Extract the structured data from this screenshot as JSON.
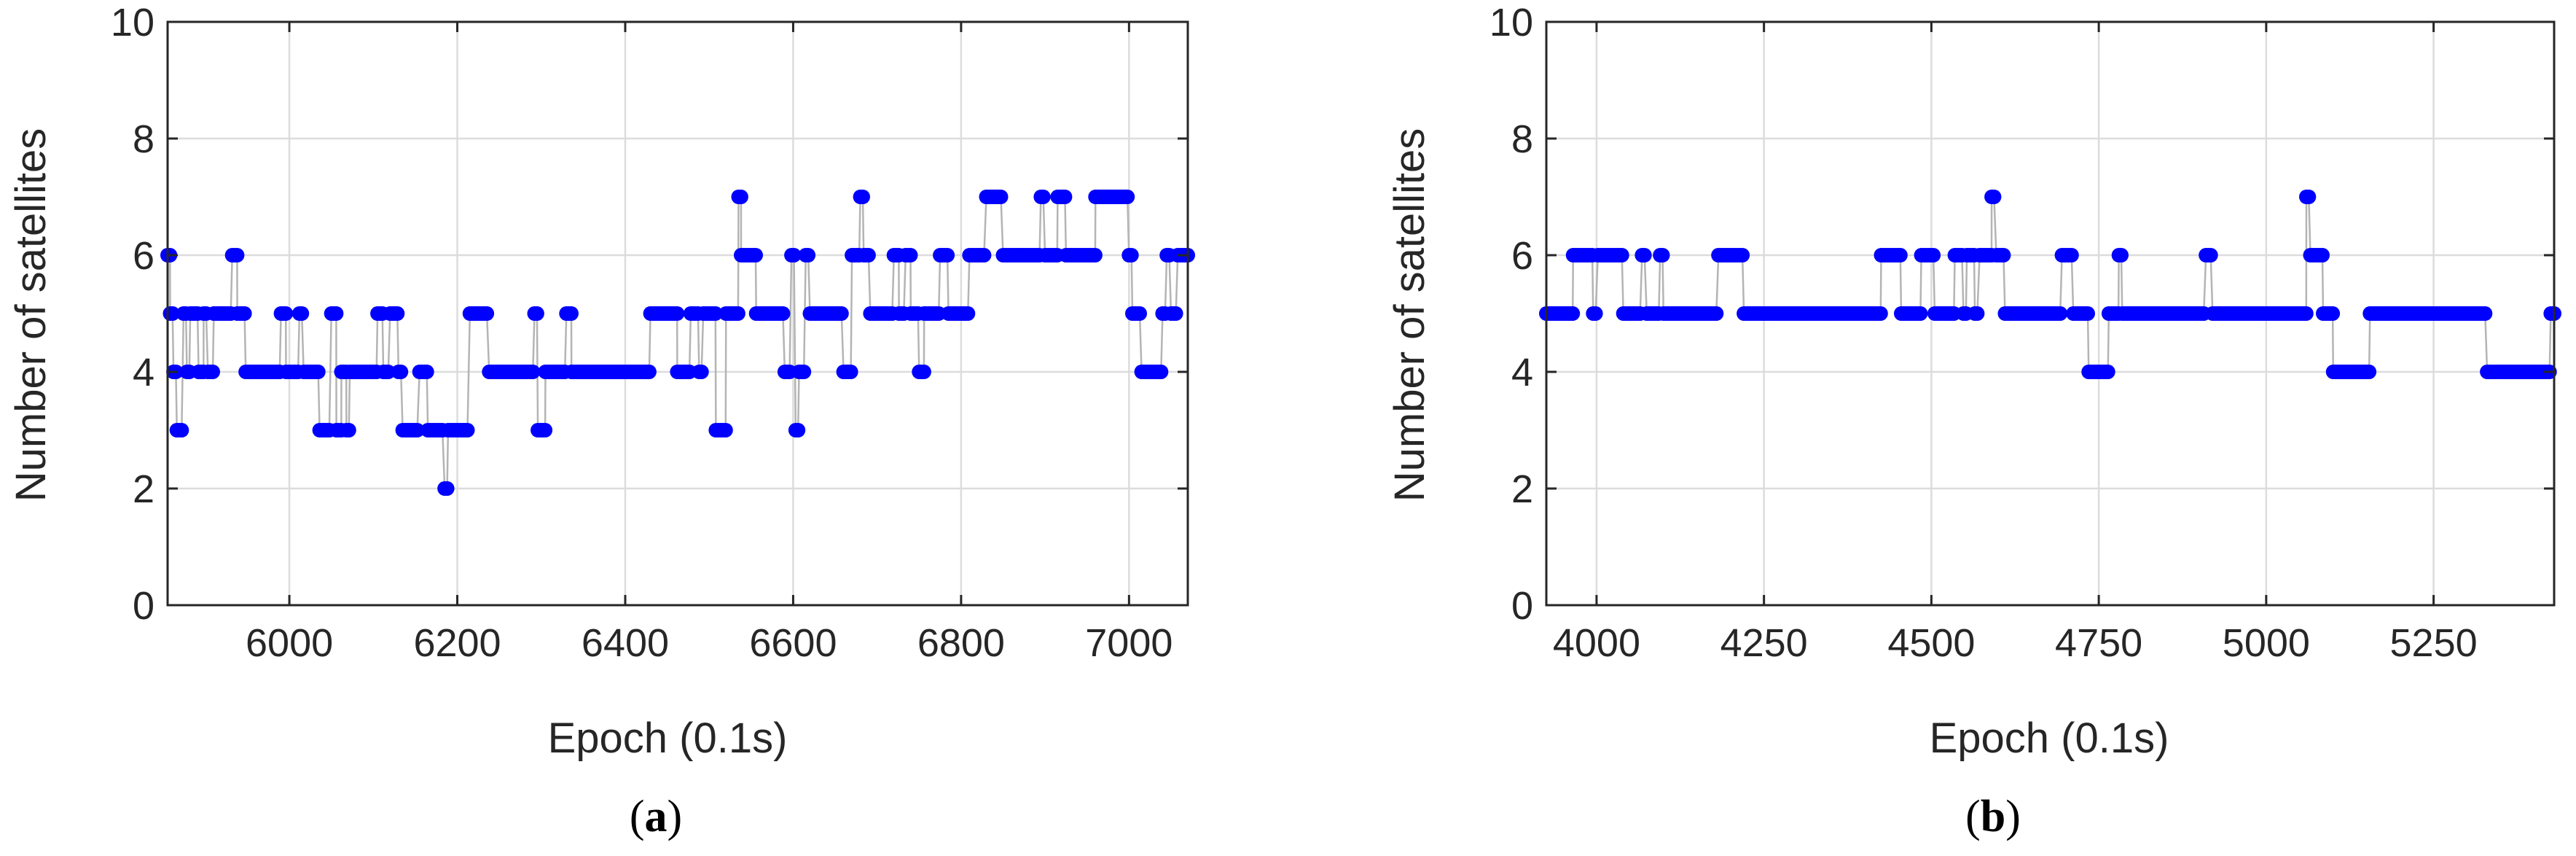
{
  "chart_data": [
    {
      "type": "scatter",
      "panel_label": {
        "open": "(",
        "letter": "a",
        "close": ")"
      },
      "xlabel": "Epoch (0.1s)",
      "ylabel": "Number of satellites",
      "xlim": [
        5855,
        7070
      ],
      "ylim": [
        0,
        10
      ],
      "xticks": [
        "6000",
        "6200",
        "6400",
        "6600",
        "6800",
        "7000"
      ],
      "yticks": [
        "0",
        "2",
        "4",
        "6",
        "8",
        "10"
      ],
      "grid": true,
      "marker_color": "#0000ff",
      "stem_color": "#b4b4b4",
      "steps": [
        [
          5855,
          6
        ],
        [
          5858,
          5
        ],
        [
          5862,
          4
        ],
        [
          5866,
          3
        ],
        [
          5874,
          5
        ],
        [
          5878,
          4
        ],
        [
          5882,
          5
        ],
        [
          5892,
          4
        ],
        [
          5898,
          5
        ],
        [
          5903,
          4
        ],
        [
          5910,
          5
        ],
        [
          5932,
          6
        ],
        [
          5938,
          5
        ],
        [
          5948,
          4
        ],
        [
          5990,
          5
        ],
        [
          5996,
          4
        ],
        [
          6012,
          5
        ],
        [
          6017,
          4
        ],
        [
          6036,
          3
        ],
        [
          6050,
          5
        ],
        [
          6056,
          3
        ],
        [
          6062,
          4
        ],
        [
          6068,
          3
        ],
        [
          6072,
          4
        ],
        [
          6105,
          5
        ],
        [
          6112,
          4
        ],
        [
          6120,
          5
        ],
        [
          6130,
          4
        ],
        [
          6135,
          3
        ],
        [
          6155,
          4
        ],
        [
          6165,
          3
        ],
        [
          6185,
          2
        ],
        [
          6189,
          3
        ],
        [
          6215,
          5
        ],
        [
          6238,
          4
        ],
        [
          6292,
          5
        ],
        [
          6296,
          3
        ],
        [
          6305,
          4
        ],
        [
          6330,
          5
        ],
        [
          6336,
          4
        ],
        [
          6430,
          5
        ],
        [
          6462,
          4
        ],
        [
          6478,
          5
        ],
        [
          6488,
          4
        ],
        [
          6493,
          5
        ],
        [
          6508,
          3
        ],
        [
          6520,
          5
        ],
        [
          6535,
          7
        ],
        [
          6538,
          6
        ],
        [
          6556,
          5
        ],
        [
          6590,
          4
        ],
        [
          6598,
          6
        ],
        [
          6603,
          3
        ],
        [
          6607,
          4
        ],
        [
          6615,
          6
        ],
        [
          6620,
          5
        ],
        [
          6660,
          4
        ],
        [
          6670,
          6
        ],
        [
          6680,
          7
        ],
        [
          6684,
          6
        ],
        [
          6692,
          5
        ],
        [
          6720,
          6
        ],
        [
          6726,
          5
        ],
        [
          6734,
          6
        ],
        [
          6740,
          5
        ],
        [
          6750,
          4
        ],
        [
          6756,
          5
        ],
        [
          6775,
          6
        ],
        [
          6785,
          5
        ],
        [
          6810,
          6
        ],
        [
          6830,
          7
        ],
        [
          6850,
          6
        ],
        [
          6895,
          7
        ],
        [
          6900,
          6
        ],
        [
          6915,
          7
        ],
        [
          6925,
          6
        ],
        [
          6960,
          7
        ],
        [
          6975,
          7
        ],
        [
          7000,
          6
        ],
        [
          7004,
          5
        ],
        [
          7015,
          4
        ],
        [
          7040,
          5
        ],
        [
          7045,
          6
        ],
        [
          7050,
          5
        ],
        [
          7058,
          6
        ],
        [
          7070,
          6
        ]
      ]
    },
    {
      "type": "scatter",
      "panel_label": {
        "open": "(",
        "letter": "b",
        "close": ")"
      },
      "xlabel": "Epoch (0.1s)",
      "ylabel": "Number of satellites",
      "xlim": [
        3925,
        5430
      ],
      "ylim": [
        0,
        10
      ],
      "xticks": [
        "4000",
        "4250",
        "4500",
        "4750",
        "5000",
        "5250"
      ],
      "yticks": [
        "0",
        "2",
        "4",
        "6",
        "8",
        "10"
      ],
      "grid": true,
      "marker_color": "#0000ff",
      "stem_color": "#b4b4b4",
      "steps": [
        [
          3925,
          5
        ],
        [
          3965,
          6
        ],
        [
          3995,
          5
        ],
        [
          4002,
          6
        ],
        [
          4040,
          5
        ],
        [
          4068,
          6
        ],
        [
          4075,
          5
        ],
        [
          4095,
          6
        ],
        [
          4100,
          5
        ],
        [
          4182,
          6
        ],
        [
          4220,
          5
        ],
        [
          4425,
          6
        ],
        [
          4455,
          5
        ],
        [
          4485,
          6
        ],
        [
          4505,
          5
        ],
        [
          4535,
          6
        ],
        [
          4548,
          5
        ],
        [
          4553,
          6
        ],
        [
          4565,
          5
        ],
        [
          4572,
          6
        ],
        [
          4590,
          7
        ],
        [
          4597,
          6
        ],
        [
          4610,
          5
        ],
        [
          4695,
          6
        ],
        [
          4712,
          5
        ],
        [
          4735,
          4
        ],
        [
          4765,
          5
        ],
        [
          4780,
          6
        ],
        [
          4785,
          5
        ],
        [
          4910,
          6
        ],
        [
          4920,
          5
        ],
        [
          5060,
          7
        ],
        [
          5066,
          6
        ],
        [
          5085,
          5
        ],
        [
          5100,
          4
        ],
        [
          5155,
          5
        ],
        [
          5330,
          4
        ],
        [
          5425,
          5
        ],
        [
          5430,
          5
        ]
      ]
    }
  ]
}
